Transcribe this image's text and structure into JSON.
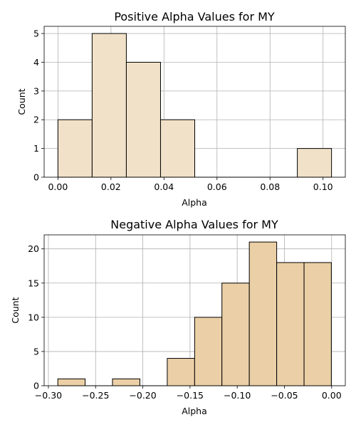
{
  "chart_data": [
    {
      "type": "bar",
      "title": "Positive Alpha Values for MY",
      "xlabel": "Alpha",
      "ylabel": "Count",
      "xlim": [
        -0.0052,
        0.1084
      ],
      "ylim": [
        0,
        5.25
      ],
      "grid": true,
      "bar_color": "#f1e1c8",
      "edge_color": "#000000",
      "x_ticks": [
        0.0,
        0.02,
        0.04,
        0.06,
        0.08,
        0.1
      ],
      "x_tick_labels": [
        "0.00",
        "0.02",
        "0.04",
        "0.06",
        "0.08",
        "0.10"
      ],
      "y_ticks": [
        0,
        1,
        2,
        3,
        4,
        5
      ],
      "y_tick_labels": [
        "0",
        "1",
        "2",
        "3",
        "4",
        "5"
      ],
      "bins": [
        {
          "left": 0.0,
          "right": 0.0129,
          "count": 2
        },
        {
          "left": 0.0129,
          "right": 0.0258,
          "count": 5
        },
        {
          "left": 0.0258,
          "right": 0.0387,
          "count": 4
        },
        {
          "left": 0.0387,
          "right": 0.0516,
          "count": 2
        },
        {
          "left": 0.0516,
          "right": 0.0645,
          "count": 0
        },
        {
          "left": 0.0645,
          "right": 0.0774,
          "count": 0
        },
        {
          "left": 0.0774,
          "right": 0.0903,
          "count": 0
        },
        {
          "left": 0.0903,
          "right": 0.1032,
          "count": 1
        }
      ]
    },
    {
      "type": "bar",
      "title": "Negative Alpha Values for MY",
      "xlabel": "Alpha",
      "ylabel": "Count",
      "xlim": [
        -0.3045,
        0.0145
      ],
      "ylim": [
        0,
        22.05
      ],
      "grid": true,
      "bar_color": "#ebcfa6",
      "edge_color": "#000000",
      "x_ticks": [
        -0.3,
        -0.25,
        -0.2,
        -0.15,
        -0.1,
        -0.05,
        0.0
      ],
      "x_tick_labels": [
        "−0.30",
        "−0.25",
        "−0.20",
        "−0.15",
        "−0.10",
        "−0.05",
        "0.00"
      ],
      "y_ticks": [
        0,
        5,
        10,
        15,
        20
      ],
      "y_tick_labels": [
        "0",
        "5",
        "10",
        "15",
        "20"
      ],
      "bins": [
        {
          "left": -0.29,
          "right": -0.2611,
          "count": 1
        },
        {
          "left": -0.2611,
          "right": -0.2321,
          "count": 0
        },
        {
          "left": -0.2321,
          "right": -0.2031,
          "count": 1
        },
        {
          "left": -0.2031,
          "right": -0.1741,
          "count": 0
        },
        {
          "left": -0.1741,
          "right": -0.1451,
          "count": 4
        },
        {
          "left": -0.1451,
          "right": -0.1162,
          "count": 10
        },
        {
          "left": -0.1162,
          "right": -0.0872,
          "count": 15
        },
        {
          "left": -0.0872,
          "right": -0.0582,
          "count": 21
        },
        {
          "left": -0.0582,
          "right": -0.0292,
          "count": 18
        },
        {
          "left": -0.0292,
          "right": -0.0003,
          "count": 18
        }
      ]
    }
  ]
}
